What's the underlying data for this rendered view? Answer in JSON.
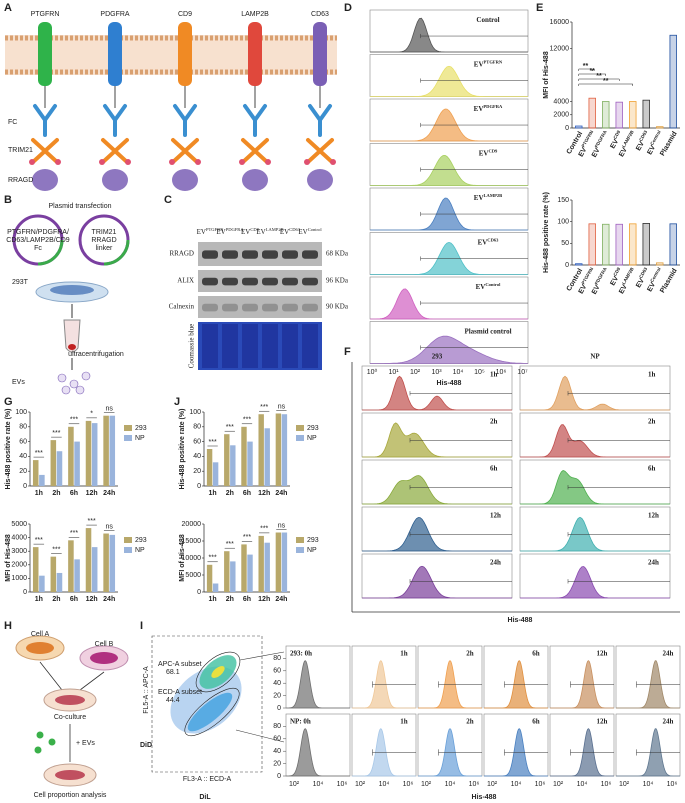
{
  "panel_labels": [
    "A",
    "B",
    "C",
    "D",
    "E",
    "F",
    "G",
    "H",
    "I",
    "J"
  ],
  "panel_a": {
    "proteins": [
      {
        "name": "PTGFRN",
        "color": "#2fb34a"
      },
      {
        "name": "PDGFRA",
        "color": "#2f7fd0"
      },
      {
        "name": "CD9",
        "color": "#f08a24"
      },
      {
        "name": "LAMP2B",
        "color": "#e0483c"
      },
      {
        "name": "CD63",
        "color": "#7a5fb5"
      }
    ],
    "labels": [
      {
        "text": "FC",
        "color": "#3a8fd0"
      },
      {
        "text": "TRIM21",
        "color": "#f08a24"
      },
      {
        "text": "RRAGD",
        "color": "#7a5fb5"
      }
    ]
  },
  "panel_b": {
    "title": "Plasmid transfection",
    "plasmid_1": [
      "PTGFRN/PDGFRA/",
      "CD63/LAMP2B/CD9",
      "Fc"
    ],
    "plasmid_2": [
      "TRIM21",
      "RRAGD",
      "linker"
    ],
    "cell": "293T",
    "step": "ultracentrifugation",
    "product": "EVs"
  },
  "panel_c": {
    "lanes": [
      {
        "base": "EV",
        "sup": "PTGFRN"
      },
      {
        "base": "EV",
        "sup": "PDGFRA"
      },
      {
        "base": "EV",
        "sup": "CD9"
      },
      {
        "base": "EV",
        "sup": "LAMP2B"
      },
      {
        "base": "EV",
        "sup": "CD63"
      },
      {
        "base": "EV",
        "sup": "Control"
      }
    ],
    "rows": [
      "RRAGD",
      "ALIX",
      "Calnexin",
      "Coomassie blue"
    ],
    "sizes": [
      "68 KDa",
      "96 KDa",
      "90 KDa"
    ]
  },
  "panel_d": {
    "rows": [
      {
        "base": "Control",
        "color": "#555555"
      },
      {
        "base": "EV",
        "sup": "PTGFRN",
        "color": "#e8e06a"
      },
      {
        "base": "EV",
        "sup": "PDGFRA",
        "color": "#f0a050"
      },
      {
        "base": "EV",
        "sup": "CD9",
        "color": "#a8d060"
      },
      {
        "base": "EV",
        "sup": "LAMP2B",
        "color": "#4a7fc0"
      },
      {
        "base": "EV",
        "sup": "CD63",
        "color": "#50c0c8"
      },
      {
        "base": "EV",
        "sup": "Control",
        "color": "#d060c0"
      },
      {
        "base": "Plasmid control",
        "color": "#9a70c0"
      }
    ],
    "xticks": [
      "10⁰",
      "10¹",
      "10²",
      "10³",
      "10⁴",
      "10⁵",
      "10⁶",
      "10⁷"
    ],
    "x_label": "His-488"
  },
  "panel_f": {
    "groups": [
      {
        "name": "293",
        "colors": [
          "#c0504d",
          "#a8a83c",
          "#8aaa3c",
          "#2f5f8f",
          "#7a3f9a"
        ]
      },
      {
        "name": "NP",
        "colors": [
          "#e0a060",
          "#c05050",
          "#50b050",
          "#40b0b0",
          "#8a4ab0"
        ]
      }
    ],
    "times": [
      "1h",
      "2h",
      "6h",
      "12h",
      "24h"
    ],
    "x_label": "His-488"
  },
  "panel_h": {
    "cells": [
      "Cell A",
      "Cell B"
    ],
    "steps": [
      "Co-culture",
      "+ EVs",
      "Cell proportion analysis"
    ]
  },
  "panel_i": {
    "gates": [
      {
        "name": "APC-A subset",
        "value": 68.1
      },
      {
        "name": "ECD-A subset",
        "value": 44.4
      }
    ],
    "y_axis": "FL5-A :: APC-A",
    "x_axis": "FL3-A :: ECD-A",
    "dye_y": "DiD",
    "dye_x": "DiL",
    "rows": [
      {
        "first": "293: 0h",
        "colors": [
          "#707070",
          "#f0c898",
          "#f0a050",
          "#e09040",
          "#c89060",
          "#a08868"
        ]
      },
      {
        "first": "NP: 0h",
        "colors": [
          "#707070",
          "#a8c8e8",
          "#6aa0d8",
          "#4a80c0",
          "#5a7090",
          "#607890"
        ]
      }
    ],
    "times": [
      "1h",
      "2h",
      "6h",
      "12h",
      "24h"
    ],
    "ylim": [
      0,
      100
    ],
    "yticks": [
      0,
      20,
      40,
      60,
      80
    ],
    "xticks": [
      "10²",
      "10⁴",
      "10⁶"
    ],
    "x_label": "His-488"
  },
  "chart_data": [
    {
      "type": "bar",
      "ylabel": "MFI of His-488",
      "categories": [
        "Control",
        "EV",
        "EV",
        "EV",
        "EV",
        "EV",
        "EV",
        "Plasmid"
      ],
      "category_sups": [
        null,
        "PTGFRN",
        "PDGFRA",
        "CD9",
        "LAMP2B",
        "CD63",
        "Control",
        null
      ],
      "values": [
        300,
        4500,
        4000,
        3900,
        4000,
        4200,
        200,
        14000
      ],
      "colors": [
        "#3060c0",
        "#e06040",
        "#80b060",
        "#a060c0",
        "#f0a030",
        "#303030",
        "#e0a040",
        "#2050a0"
      ],
      "ylim": [
        0,
        16000
      ],
      "yticks": [
        0,
        2000,
        4000,
        12000,
        16000
      ],
      "significance": [
        "**",
        "**",
        "**",
        "**"
      ]
    },
    {
      "type": "bar",
      "ylabel": "His-488 positive rate (%)",
      "categories": [
        "Control",
        "EV",
        "EV",
        "EV",
        "EV",
        "EV",
        "EV",
        "Plasmid"
      ],
      "category_sups": [
        null,
        "PTGFRN",
        "PDGFRA",
        "CD9",
        "LAMP2B",
        "CD63",
        "Control",
        null
      ],
      "values": [
        3,
        95,
        94,
        94,
        95,
        96,
        5,
        95
      ],
      "colors": [
        "#3060c0",
        "#e06040",
        "#80b060",
        "#a060c0",
        "#f0a030",
        "#303030",
        "#e0a040",
        "#2050a0"
      ],
      "ylim": [
        0,
        150
      ],
      "yticks": [
        0,
        50,
        100,
        150
      ]
    },
    {
      "type": "bar",
      "ylabel": "His-488 positive rate (%)",
      "categories": [
        "1h",
        "2h",
        "6h",
        "12h",
        "24h"
      ],
      "series": [
        {
          "name": "293",
          "color": "#b8a86a",
          "values": [
            35,
            62,
            80,
            88,
            95
          ]
        },
        {
          "name": "NP",
          "color": "#9ab4dc",
          "values": [
            15,
            47,
            60,
            85,
            95
          ]
        }
      ],
      "ylim": [
        0,
        100
      ],
      "yticks": [
        0,
        20,
        40,
        60,
        80,
        100
      ],
      "significance": [
        "***",
        "***",
        "***",
        "*",
        "ns"
      ]
    },
    {
      "type": "bar",
      "ylabel": "MFI of His-488",
      "categories": [
        "1h",
        "2h",
        "6h",
        "12h",
        "24h"
      ],
      "series": [
        {
          "name": "293",
          "color": "#b8a86a",
          "values": [
            3300,
            2600,
            3800,
            4700,
            4300
          ]
        },
        {
          "name": "NP",
          "color": "#9ab4dc",
          "values": [
            1200,
            1400,
            2400,
            3300,
            4200
          ]
        }
      ],
      "ylim": [
        0,
        5000
      ],
      "yticks": [
        0,
        1000,
        2000,
        3000,
        4000,
        5000
      ],
      "significance": [
        "***",
        "***",
        "***",
        "***",
        "ns"
      ]
    },
    {
      "type": "bar",
      "ylabel": "His-488 positive rate (%)",
      "categories": [
        "1h",
        "2h",
        "6h",
        "12h",
        "24h"
      ],
      "series": [
        {
          "name": "293",
          "color": "#b8a86a",
          "values": [
            50,
            70,
            80,
            97,
            98
          ]
        },
        {
          "name": "NP",
          "color": "#9ab4dc",
          "values": [
            32,
            55,
            60,
            78,
            97
          ]
        }
      ],
      "ylim": [
        0,
        100
      ],
      "yticks": [
        0,
        20,
        40,
        60,
        80,
        100
      ],
      "significance": [
        "***",
        "***",
        "***",
        "***",
        "ns"
      ]
    },
    {
      "type": "bar",
      "ylabel": "MFI of His-488",
      "categories": [
        "1h",
        "2h",
        "6h",
        "12h",
        "24h"
      ],
      "series": [
        {
          "name": "293",
          "color": "#b8a86a",
          "values": [
            8000,
            12000,
            14000,
            16500,
            17500
          ]
        },
        {
          "name": "NP",
          "color": "#9ab4dc",
          "values": [
            2500,
            9000,
            11000,
            14500,
            17500
          ]
        }
      ],
      "ylim": [
        0,
        20000
      ],
      "yticks": [
        0,
        5000,
        10000,
        15000,
        20000
      ],
      "significance": [
        "***",
        "***",
        "***",
        "***",
        "ns"
      ]
    }
  ]
}
